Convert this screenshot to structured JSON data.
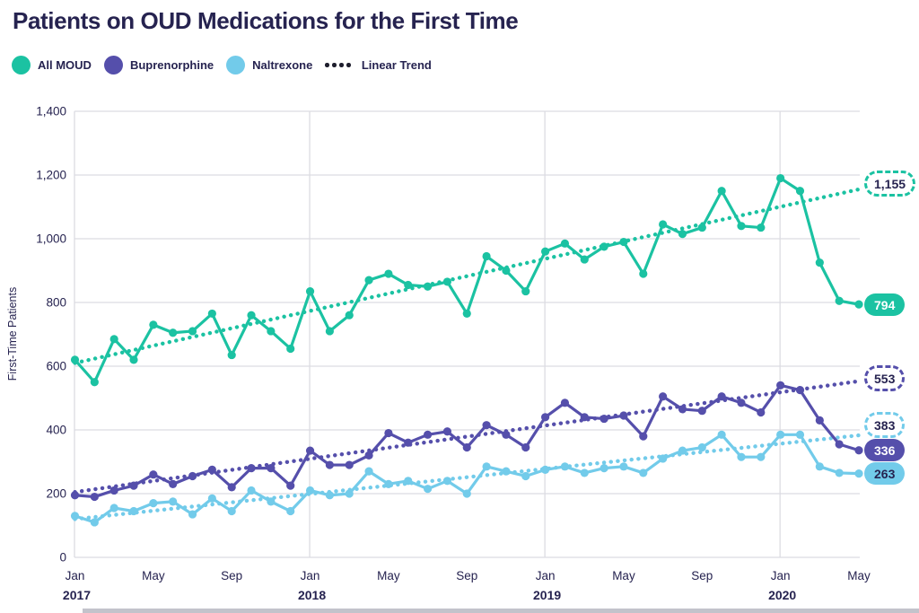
{
  "title": "Patients on OUD Medications for the First Time",
  "colors": {
    "all_moud": "#1bc2a2",
    "buprenorphine": "#554fab",
    "naltrexone": "#72cbea",
    "trend_legend": "#1e1e2d",
    "text_navy": "#262350",
    "grid": "#dcdce2",
    "footer_bar": "#c3c3cb"
  },
  "legend": [
    {
      "label": "All MOUD",
      "type": "dot",
      "color": "#1bc2a2"
    },
    {
      "label": "Buprenorphine",
      "type": "dot",
      "color": "#554fab"
    },
    {
      "label": "Naltrexone",
      "type": "dot",
      "color": "#72cbea"
    },
    {
      "label": "Linear Trend",
      "type": "dots",
      "color": "#1e1e2d"
    }
  ],
  "chart_data": {
    "type": "line",
    "title": "Patients on OUD Medications for the First Time",
    "xlabel": "",
    "ylabel": "First-Time Patients",
    "ylim": [
      0,
      1400
    ],
    "ytick_labels": [
      "0",
      "200",
      "400",
      "600",
      "800",
      "1,000",
      "1,200",
      "1,400"
    ],
    "grid": "horizontal gridlines every 200; vertical gridlines at each January",
    "legend_position": "top-left",
    "x": [
      "2017-01",
      "2017-02",
      "2017-03",
      "2017-04",
      "2017-05",
      "2017-06",
      "2017-07",
      "2017-08",
      "2017-09",
      "2017-10",
      "2017-11",
      "2017-12",
      "2018-01",
      "2018-02",
      "2018-03",
      "2018-04",
      "2018-05",
      "2018-06",
      "2018-07",
      "2018-08",
      "2018-09",
      "2018-10",
      "2018-11",
      "2018-12",
      "2019-01",
      "2019-02",
      "2019-03",
      "2019-04",
      "2019-05",
      "2019-06",
      "2019-07",
      "2019-08",
      "2019-09",
      "2019-10",
      "2019-11",
      "2019-12",
      "2020-01",
      "2020-02",
      "2020-03",
      "2020-04",
      "2020-05"
    ],
    "x_ticks": [
      {
        "index": 0,
        "month": "Jan",
        "year": "2017"
      },
      {
        "index": 4,
        "month": "May"
      },
      {
        "index": 8,
        "month": "Sep"
      },
      {
        "index": 12,
        "month": "Jan",
        "year": "2018"
      },
      {
        "index": 16,
        "month": "May"
      },
      {
        "index": 20,
        "month": "Sep"
      },
      {
        "index": 24,
        "month": "Jan",
        "year": "2019"
      },
      {
        "index": 28,
        "month": "May"
      },
      {
        "index": 32,
        "month": "Sep"
      },
      {
        "index": 36,
        "month": "Jan",
        "year": "2020"
      },
      {
        "index": 40,
        "month": "May"
      }
    ],
    "series": [
      {
        "name": "All MOUD",
        "color": "#1bc2a2",
        "end_label": "794",
        "end_label_text_color": "#ffffff",
        "values": [
          620,
          550,
          685,
          620,
          730,
          705,
          710,
          765,
          635,
          760,
          710,
          655,
          835,
          710,
          760,
          870,
          890,
          855,
          850,
          865,
          765,
          945,
          900,
          835,
          960,
          985,
          935,
          975,
          990,
          890,
          1045,
          1015,
          1035,
          1150,
          1040,
          1035,
          1190,
          1150,
          925,
          805,
          794
        ]
      },
      {
        "name": "Buprenorphine",
        "color": "#554fab",
        "end_label": "336",
        "end_label_text_color": "#ffffff",
        "values": [
          195,
          190,
          210,
          225,
          260,
          230,
          255,
          275,
          220,
          280,
          280,
          225,
          335,
          290,
          290,
          320,
          390,
          360,
          385,
          395,
          345,
          415,
          385,
          345,
          440,
          485,
          440,
          435,
          445,
          380,
          505,
          465,
          460,
          505,
          485,
          455,
          540,
          525,
          430,
          355,
          336
        ]
      },
      {
        "name": "Naltrexone",
        "color": "#72cbea",
        "end_label": "263",
        "end_label_text_color": "#262350",
        "values": [
          130,
          110,
          155,
          145,
          170,
          175,
          135,
          185,
          145,
          210,
          175,
          145,
          210,
          195,
          200,
          270,
          230,
          240,
          215,
          240,
          200,
          285,
          270,
          255,
          275,
          285,
          265,
          280,
          285,
          265,
          310,
          335,
          345,
          385,
          315,
          315,
          385,
          385,
          285,
          265,
          263
        ]
      }
    ],
    "trendlines": [
      {
        "series": "All MOUD",
        "style": "dotted",
        "color": "#1bc2a2",
        "start": 610,
        "end": 1155,
        "end_label": "1,155"
      },
      {
        "series": "Buprenorphine",
        "style": "dotted",
        "color": "#554fab",
        "start": 205,
        "end": 553,
        "end_label": "553"
      },
      {
        "series": "Naltrexone",
        "style": "dotted",
        "color": "#72cbea",
        "start": 120,
        "end": 383,
        "end_label": "383"
      }
    ]
  }
}
